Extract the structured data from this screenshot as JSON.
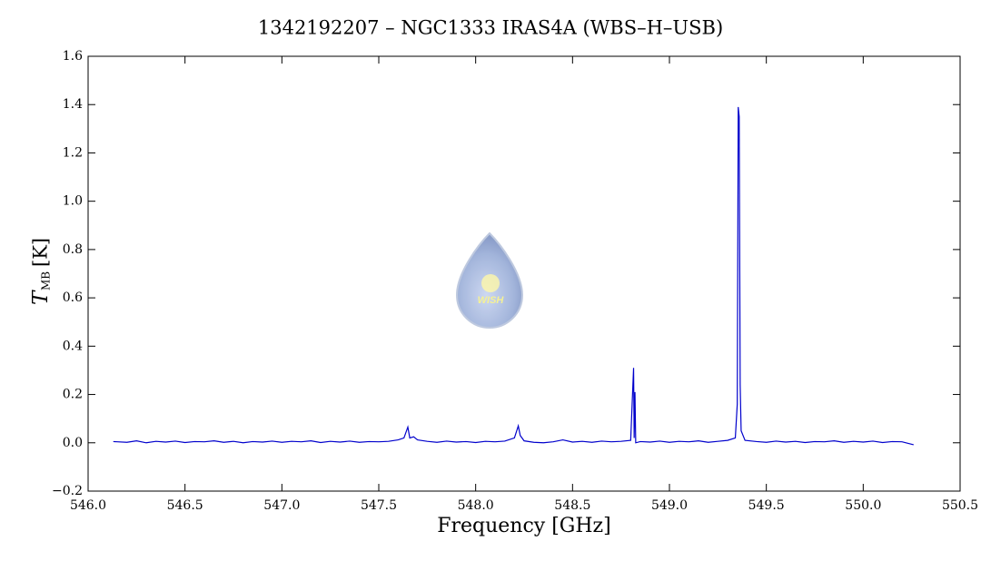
{
  "chart_data": {
    "type": "line",
    "title": "1342192207 – NGC1333 IRAS4A (WBS–H–USB)",
    "xlabel": "Frequency [GHz]",
    "ylabel": {
      "symbol": "T",
      "subscript": "MB",
      "unit": "[K]"
    },
    "watermark": "WISH",
    "xlim": [
      546.0,
      550.5
    ],
    "xticks": [
      {
        "value": 546,
        "label": "546.0"
      },
      {
        "value": 546.5,
        "label": "546.5"
      },
      {
        "value": 547,
        "label": "547.0"
      },
      {
        "value": 547.5,
        "label": "547.5"
      },
      {
        "value": 548,
        "label": "548.0"
      },
      {
        "value": 548.5,
        "label": "548.5"
      },
      {
        "value": 549,
        "label": "549.0"
      },
      {
        "value": 549.5,
        "label": "549.5"
      },
      {
        "value": 550,
        "label": "550.0"
      },
      {
        "value": 550.5,
        "label": "550.5"
      }
    ],
    "ylim": [
      -0.2,
      1.6
    ],
    "yticks": [
      {
        "value": -0.2,
        "label": "−0.2"
      },
      {
        "value": 0,
        "label": "0.0"
      },
      {
        "value": 0.2,
        "label": "0.2"
      },
      {
        "value": 0.4,
        "label": "0.4"
      },
      {
        "value": 0.6,
        "label": "0.6"
      },
      {
        "value": 0.8,
        "label": "0.8"
      },
      {
        "value": 1,
        "label": "1.0"
      },
      {
        "value": 1.2,
        "label": "1.2"
      },
      {
        "value": 1.4,
        "label": "1.4"
      },
      {
        "value": 1.6,
        "label": "1.6"
      }
    ],
    "x": [
      546.13,
      546.2,
      546.25,
      546.3,
      546.35,
      546.4,
      546.45,
      546.5,
      546.55,
      546.6,
      546.65,
      546.7,
      546.75,
      546.8,
      546.85,
      546.9,
      546.95,
      547.0,
      547.05,
      547.1,
      547.15,
      547.2,
      547.25,
      547.3,
      547.35,
      547.4,
      547.45,
      547.5,
      547.55,
      547.6,
      547.63,
      547.65,
      547.66,
      547.68,
      547.7,
      547.75,
      547.8,
      547.85,
      547.9,
      547.95,
      548.0,
      548.05,
      548.1,
      548.15,
      548.2,
      548.22,
      548.23,
      548.25,
      548.3,
      548.35,
      548.4,
      548.45,
      548.5,
      548.55,
      548.6,
      548.65,
      548.7,
      548.75,
      548.8,
      548.815,
      548.818,
      548.822,
      548.826,
      548.85,
      548.9,
      548.95,
      549.0,
      549.05,
      549.1,
      549.15,
      549.2,
      549.25,
      549.3,
      549.34,
      549.35,
      549.355,
      549.36,
      549.365,
      549.37,
      549.39,
      549.45,
      549.5,
      549.55,
      549.6,
      549.65,
      549.7,
      549.75,
      549.8,
      549.85,
      549.9,
      549.95,
      550.0,
      550.05,
      550.1,
      550.15,
      550.2,
      550.26
    ],
    "series": [
      {
        "name": "WBS-H-USB",
        "color": "#0000cc",
        "values": [
          0.005,
          0.002,
          0.008,
          0.0,
          0.006,
          0.003,
          0.007,
          0.001,
          0.005,
          0.004,
          0.008,
          0.002,
          0.006,
          0.0,
          0.005,
          0.003,
          0.007,
          0.002,
          0.006,
          0.004,
          0.008,
          0.001,
          0.006,
          0.003,
          0.007,
          0.002,
          0.005,
          0.004,
          0.006,
          0.012,
          0.02,
          0.065,
          0.02,
          0.025,
          0.012,
          0.006,
          0.002,
          0.007,
          0.003,
          0.005,
          0.001,
          0.006,
          0.004,
          0.007,
          0.02,
          0.07,
          0.03,
          0.008,
          0.002,
          0.0,
          0.004,
          0.012,
          0.003,
          0.006,
          0.002,
          0.007,
          0.004,
          0.006,
          0.01,
          0.31,
          0.02,
          0.21,
          0.0,
          0.005,
          0.003,
          0.007,
          0.002,
          0.006,
          0.004,
          0.008,
          0.002,
          0.006,
          0.01,
          0.02,
          0.16,
          1.39,
          1.35,
          0.24,
          0.05,
          0.01,
          0.005,
          0.002,
          0.007,
          0.003,
          0.006,
          0.001,
          0.005,
          0.004,
          0.008,
          0.002,
          0.006,
          0.003,
          0.007,
          0.001,
          0.005,
          0.004,
          -0.008
        ]
      }
    ]
  }
}
